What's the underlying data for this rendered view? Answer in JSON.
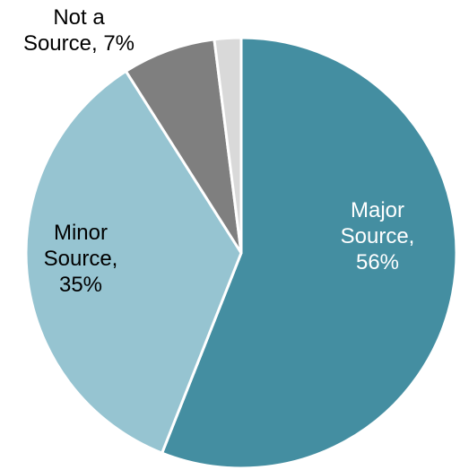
{
  "chart_data": {
    "type": "pie",
    "start_angle_deg": 0,
    "direction": "clockwise",
    "slices": [
      {
        "label": "Major Source",
        "value": 56,
        "display_value": "56%",
        "color": "#448ea1",
        "label_color": "#ffffff",
        "label_lines": [
          "Major",
          "Source,",
          "56%"
        ]
      },
      {
        "label": "Minor Source",
        "value": 35,
        "display_value": "35%",
        "color": "#96c4d1",
        "label_color": "#000000",
        "label_lines": [
          "Minor",
          "Source,",
          "35%"
        ]
      },
      {
        "label": "Not a Source",
        "value": 7,
        "display_value": "7%",
        "color": "#7f7f7f",
        "label_color": "#000000",
        "label_lines": [
          "Not a",
          "Source, 7%"
        ]
      },
      {
        "label": "",
        "value": 2,
        "display_value": "",
        "color": "#d9d9d9",
        "label_color": "#000000",
        "label_lines": []
      }
    ],
    "legend": "none",
    "title": ""
  }
}
